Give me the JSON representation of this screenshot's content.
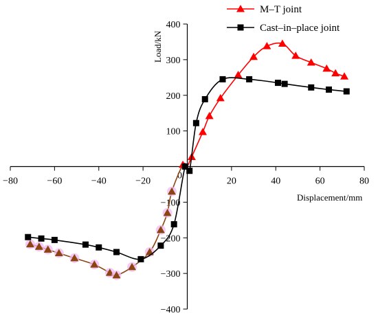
{
  "chart_data": {
    "type": "line",
    "title": "",
    "xlabel": "Displacement/mm",
    "ylabel": "Load/kN",
    "xlim": [
      -80,
      80
    ],
    "ylim": [
      -400,
      400
    ],
    "xticks": [
      -80,
      -60,
      -40,
      -20,
      0,
      20,
      40,
      60,
      80
    ],
    "xtick_labels": [
      "−80",
      "−60",
      "−40",
      "−20",
      "0",
      "20",
      "40",
      "60",
      "80"
    ],
    "yticks": [
      -400,
      -300,
      -200,
      -100,
      100,
      200,
      300,
      400
    ],
    "ytick_labels": [
      "−400",
      "−300",
      "−200",
      "−100",
      "100",
      "200",
      "300",
      "400"
    ],
    "grid": false,
    "legend": "top-right",
    "series": [
      {
        "name": "M–T joint",
        "marker": "triangle",
        "color": "#ff0000",
        "negative_color": "#8b4513",
        "points": [
          [
            -71,
            -218
          ],
          [
            -67,
            -225
          ],
          [
            -63,
            -233
          ],
          [
            -58,
            -243
          ],
          [
            -51,
            -257
          ],
          [
            -42,
            -275
          ],
          [
            -35,
            -298
          ],
          [
            -32,
            -305
          ],
          [
            -25,
            -282
          ],
          [
            -17,
            -240
          ],
          [
            -12,
            -178
          ],
          [
            -9,
            -130
          ],
          [
            -7,
            -70
          ],
          [
            -2,
            5
          ],
          [
            0,
            0
          ],
          [
            2,
            27
          ],
          [
            7,
            97
          ],
          [
            10,
            142
          ],
          [
            15,
            192
          ],
          [
            23,
            257
          ],
          [
            30,
            308
          ],
          [
            36,
            338
          ],
          [
            43,
            345
          ],
          [
            49,
            311
          ],
          [
            56,
            292
          ],
          [
            63,
            275
          ],
          [
            67,
            262
          ],
          [
            71,
            253
          ]
        ]
      },
      {
        "name": "Cast–in–place joint",
        "marker": "square",
        "color": "#000000",
        "points": [
          [
            -72,
            -198
          ],
          [
            -66,
            -202
          ],
          [
            -60,
            -206
          ],
          [
            -46,
            -219
          ],
          [
            -40,
            -227
          ],
          [
            -32,
            -240
          ],
          [
            -21,
            -260
          ],
          [
            -12,
            -222
          ],
          [
            -6,
            -162
          ],
          [
            -1,
            0
          ],
          [
            1,
            -12
          ],
          [
            4,
            122
          ],
          [
            8,
            189
          ],
          [
            16,
            245
          ],
          [
            28,
            245
          ],
          [
            41,
            235
          ],
          [
            44,
            232
          ],
          [
            56,
            222
          ],
          [
            64,
            216
          ],
          [
            72,
            211
          ]
        ]
      }
    ]
  }
}
